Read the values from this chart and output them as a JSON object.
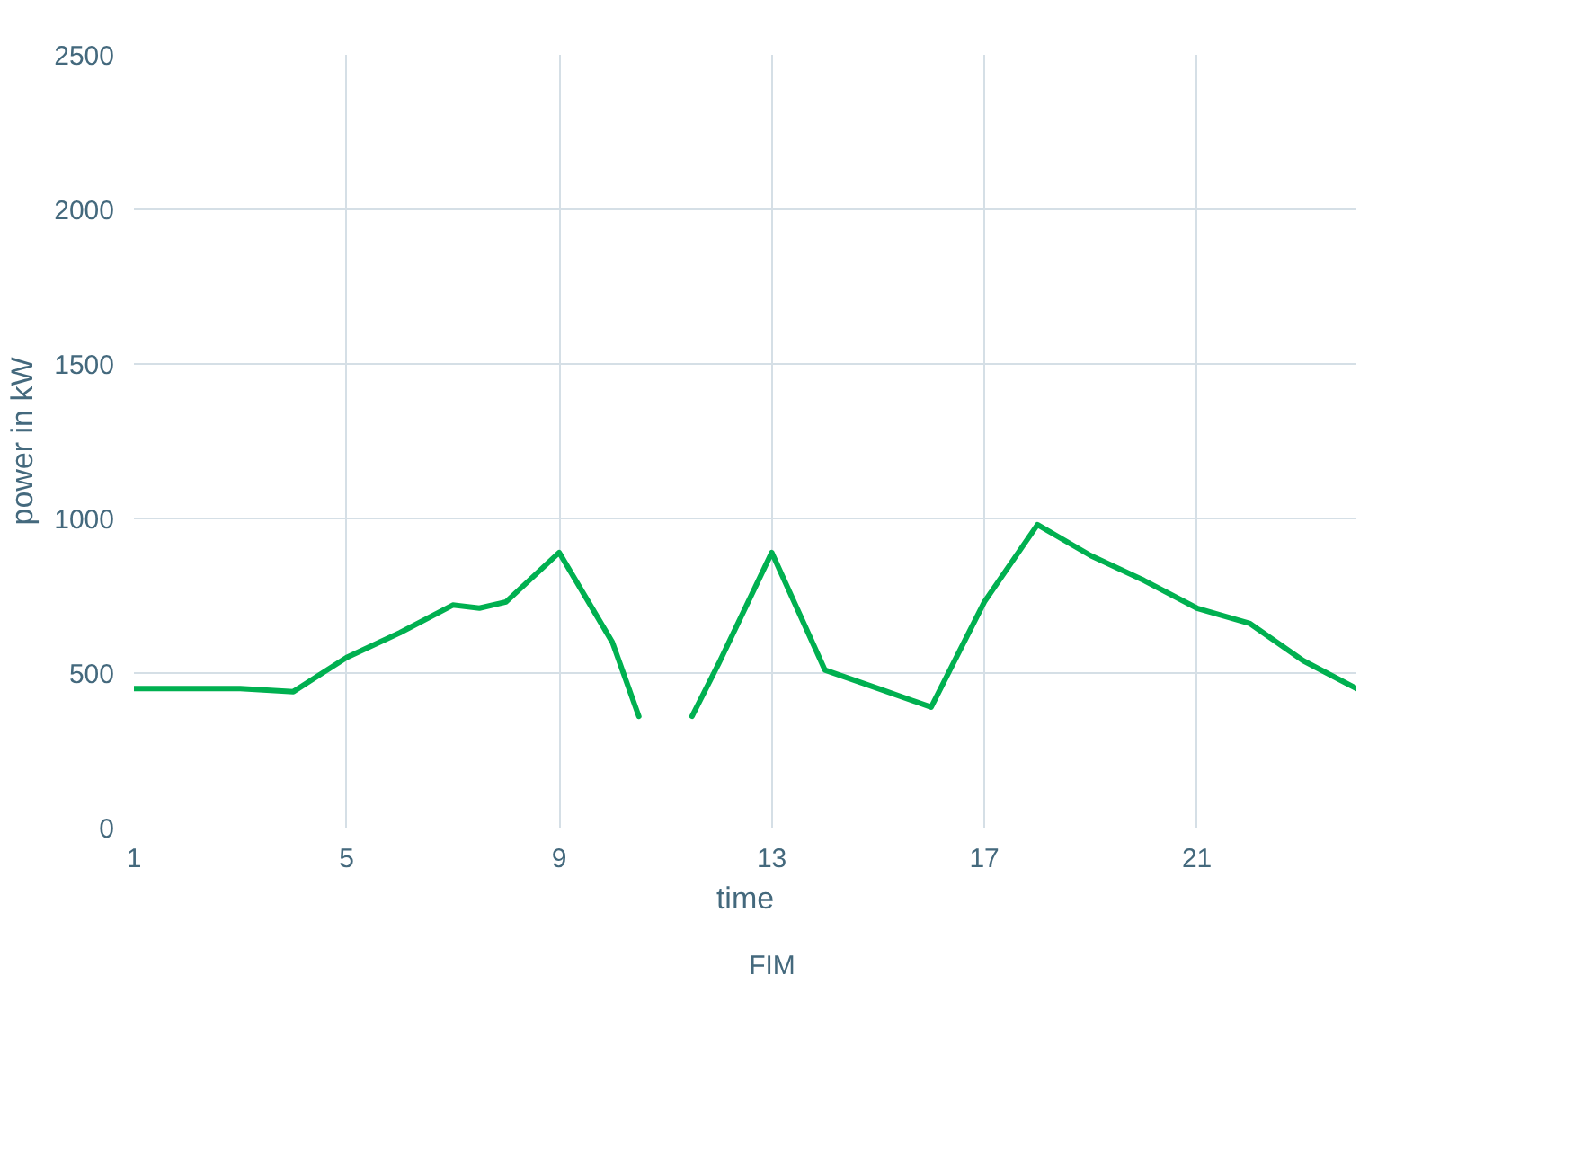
{
  "chart_data": {
    "type": "line",
    "xlabel": "time",
    "ylabel": "power in kW",
    "x": [
      1,
      2,
      3,
      4,
      5,
      6,
      7,
      7.5,
      8,
      9,
      10,
      10.5,
      11,
      11.5,
      12,
      13,
      14,
      15,
      16,
      17,
      18,
      19,
      20,
      21,
      22,
      23,
      24
    ],
    "series": [
      {
        "name": "FIM",
        "color": "#00b050",
        "values": [
          450,
          450,
          450,
          440,
          550,
          630,
          720,
          710,
          730,
          890,
          600,
          360,
          null,
          360,
          530,
          890,
          510,
          450,
          390,
          730,
          980,
          880,
          800,
          710,
          660,
          540,
          450
        ]
      }
    ],
    "xlim": [
      1,
      24
    ],
    "xticks": [
      1,
      5,
      9,
      13,
      17,
      21
    ],
    "ylim": [
      0,
      2500
    ],
    "yticks": [
      0,
      500,
      1000,
      1500,
      2000,
      2500
    ],
    "grid": true,
    "legend": "bottom",
    "line_style": "solid",
    "marker": "none"
  }
}
